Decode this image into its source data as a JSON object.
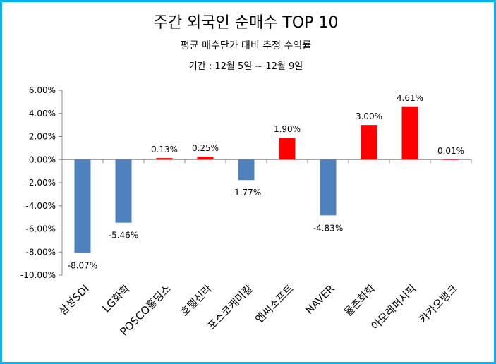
{
  "chart_data": {
    "type": "bar",
    "title": "주간 외국인 순매수  TOP 10",
    "subtitle": "평균 매수단가 대비 추정 수익률",
    "period": "기간 : 12월 5일 ~ 12월 9일",
    "categories": [
      "삼성SDI",
      "LG화학",
      "POSCO홀딩스",
      "호텔신라",
      "포스코케미칼",
      "엔씨소프트",
      "NAVER",
      "율촌화학",
      "아모레퍼시픽",
      "카카오뱅크"
    ],
    "values": [
      -8.07,
      -5.46,
      0.13,
      0.25,
      -1.77,
      1.9,
      -4.83,
      3.0,
      4.61,
      0.01
    ],
    "data_labels": [
      "-8.07%",
      "-5.46%",
      "0.13%",
      "0.25%",
      "-1.77%",
      "1.90%",
      "-4.83%",
      "3.00%",
      "4.61%",
      "0.01%"
    ],
    "ylim": [
      -10,
      6
    ],
    "yticks": [
      6,
      4,
      2,
      0,
      -2,
      -4,
      -6,
      -8,
      -10
    ],
    "ytick_labels": [
      "6.00%",
      "4.00%",
      "2.00%",
      "0.00%",
      "-2.00%",
      "-4.00%",
      "-6.00%",
      "-8.00%",
      "-10.00%"
    ],
    "grid": false,
    "colors": {
      "positive": "#ff0000",
      "negative": "#4f81bd",
      "frame": "#00b0f0"
    }
  }
}
